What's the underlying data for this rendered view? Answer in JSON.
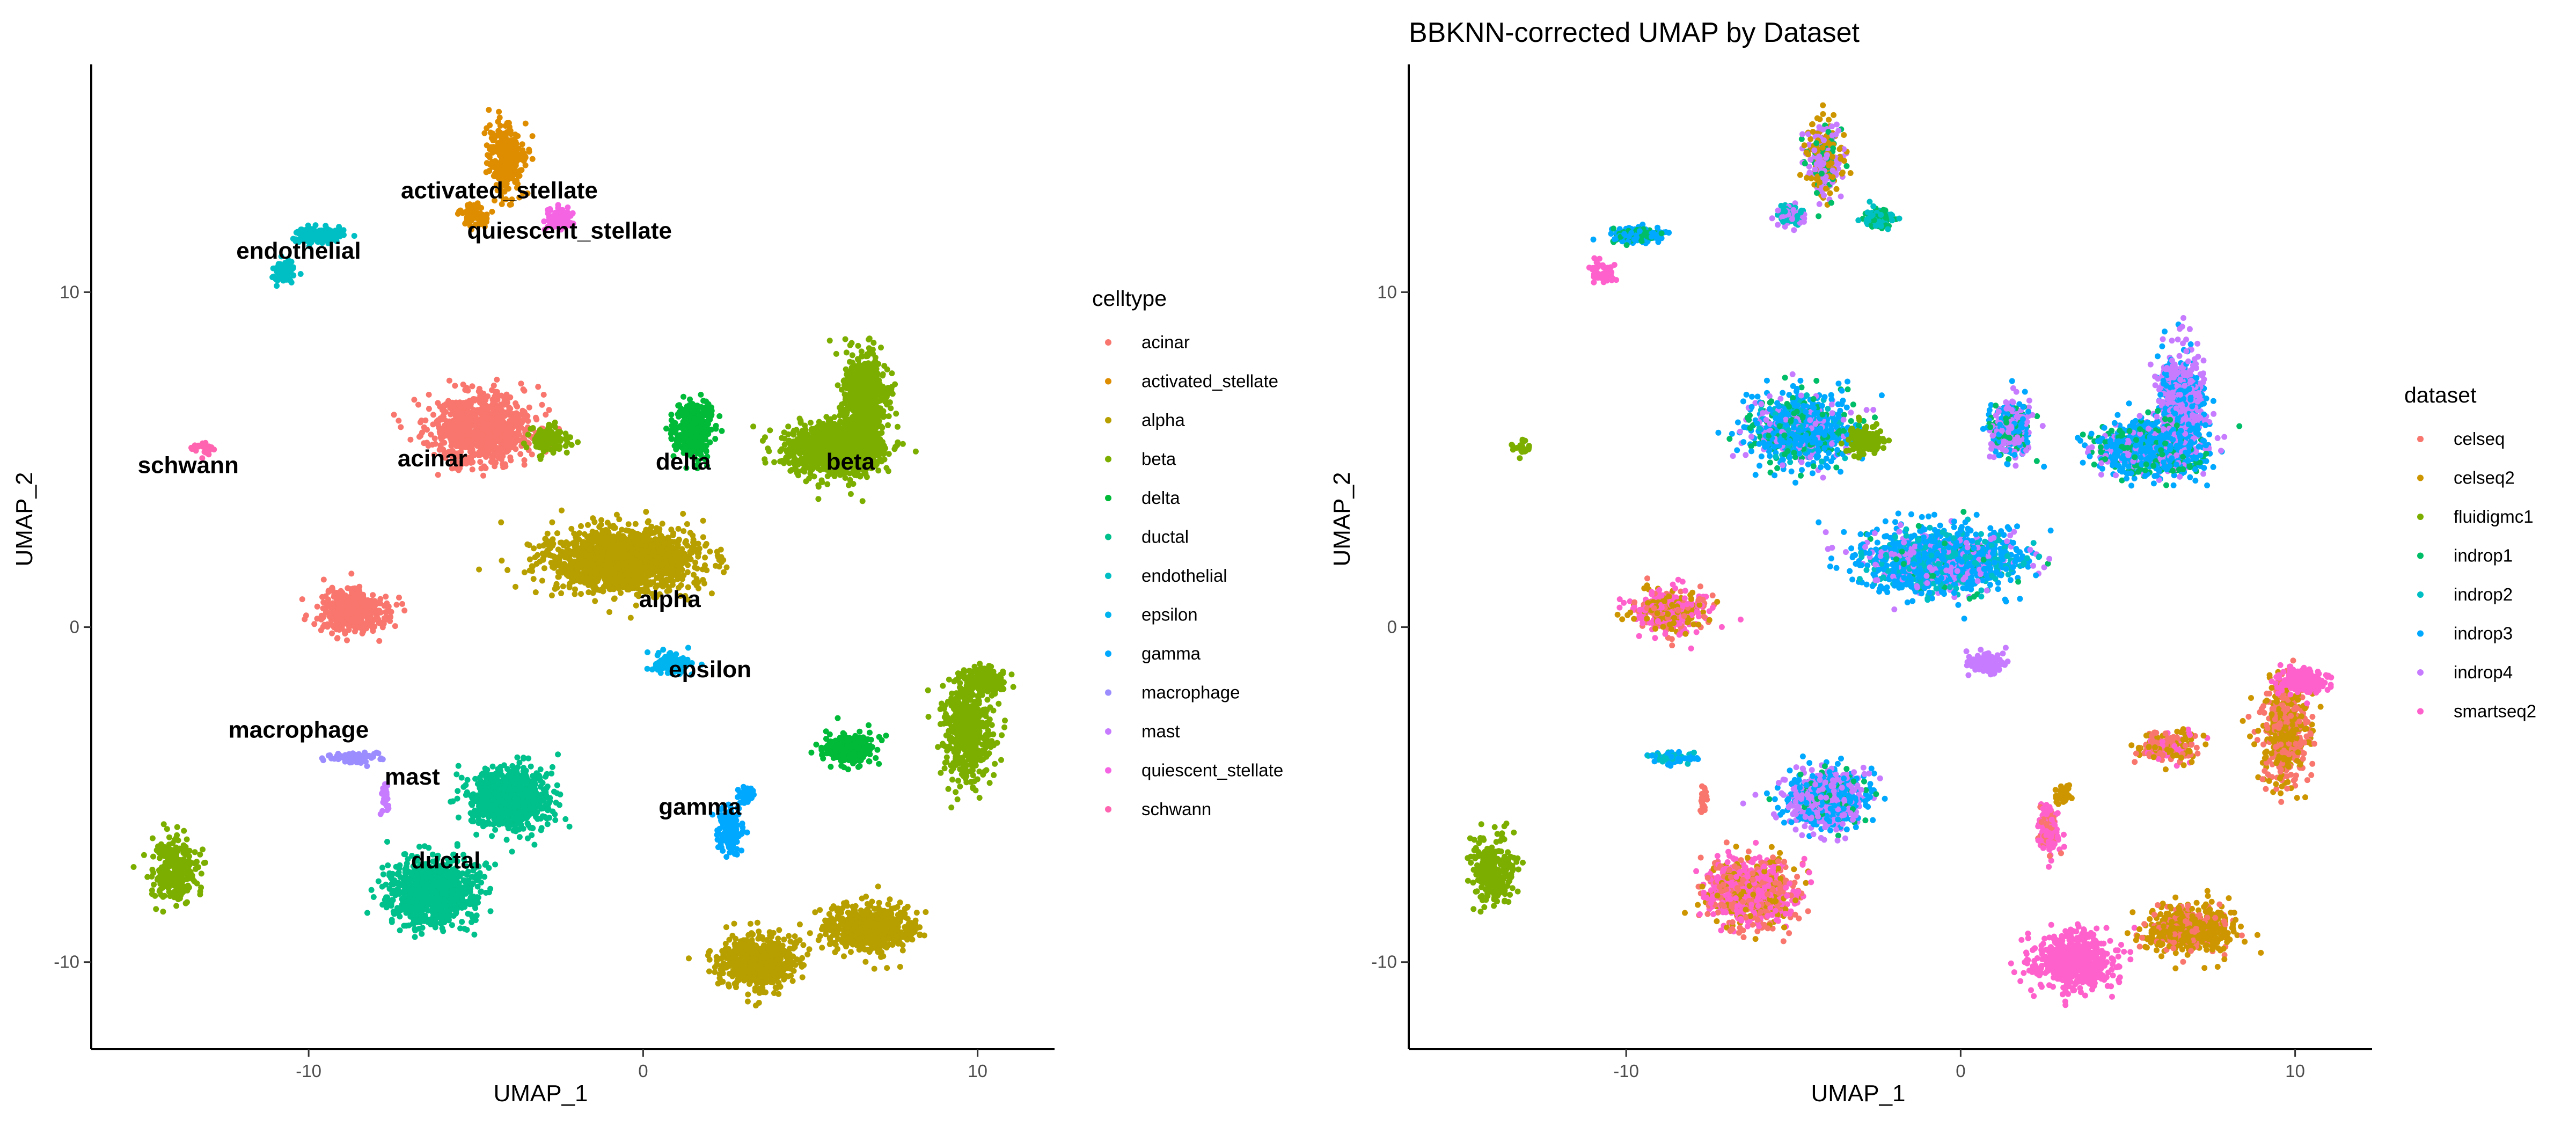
{
  "chart_data": [
    {
      "type": "scatter",
      "title": "",
      "xlabel": "UMAP_1",
      "ylabel": "UMAP_2",
      "xlim": [
        -16.5,
        12.3
      ],
      "ylim": [
        -12.6,
        16.8
      ],
      "xticks": [
        -10,
        0,
        10
      ],
      "yticks": [
        -10,
        0,
        10
      ],
      "tick_labels_x": [
        "-10",
        "0",
        "10"
      ],
      "tick_labels_y": [
        "-10",
        "0",
        "10"
      ],
      "grid": false,
      "legend_title": "celltype",
      "legend_position": "right",
      "series": [
        {
          "name": "acinar",
          "color": "#F8766D"
        },
        {
          "name": "activated_stellate",
          "color": "#DE8C00"
        },
        {
          "name": "alpha",
          "color": "#B79F00"
        },
        {
          "name": "beta",
          "color": "#7CAE00"
        },
        {
          "name": "delta",
          "color": "#00BA38"
        },
        {
          "name": "ductal",
          "color": "#00C08B"
        },
        {
          "name": "endothelial",
          "color": "#00BFC4"
        },
        {
          "name": "epsilon",
          "color": "#00B4F0"
        },
        {
          "name": "gamma",
          "color": "#00A9FF"
        },
        {
          "name": "macrophage",
          "color": "#9C8DFF"
        },
        {
          "name": "mast",
          "color": "#C77CFF"
        },
        {
          "name": "quiescent_stellate",
          "color": "#F564E3"
        },
        {
          "name": "schwann",
          "color": "#FF64B0"
        }
      ],
      "annotations": [
        {
          "text": "activated_stellate",
          "x": -4.3,
          "y": 12.8
        },
        {
          "text": "quiescent_stellate",
          "x": -2.2,
          "y": 11.6
        },
        {
          "text": "endothelial",
          "x": -10.3,
          "y": 11.0
        },
        {
          "text": "schwann",
          "x": -13.6,
          "y": 4.6
        },
        {
          "text": "acinar",
          "x": -6.3,
          "y": 4.8
        },
        {
          "text": "delta",
          "x": 1.2,
          "y": 4.7
        },
        {
          "text": "beta",
          "x": 6.2,
          "y": 4.7
        },
        {
          "text": "alpha",
          "x": 0.8,
          "y": 0.6
        },
        {
          "text": "epsilon",
          "x": 2.0,
          "y": -1.5
        },
        {
          "text": "macrophage",
          "x": -10.3,
          "y": -3.3
        },
        {
          "text": "mast",
          "x": -6.9,
          "y": -4.7
        },
        {
          "text": "gamma",
          "x": 1.7,
          "y": -5.6
        },
        {
          "text": "ductal",
          "x": -5.9,
          "y": -7.2
        }
      ]
    },
    {
      "type": "scatter",
      "title": "BBKNN-corrected UMAP by Dataset",
      "xlabel": "UMAP_1",
      "ylabel": "UMAP_2",
      "xlim": [
        -16.5,
        12.3
      ],
      "ylim": [
        -12.6,
        16.8
      ],
      "xticks": [
        -10,
        0,
        10
      ],
      "yticks": [
        -10,
        0,
        10
      ],
      "tick_labels_x": [
        "-10",
        "0",
        "10"
      ],
      "tick_labels_y": [
        "-10",
        "0",
        "10"
      ],
      "grid": false,
      "legend_title": "dataset",
      "legend_position": "right",
      "series": [
        {
          "name": "celseq",
          "color": "#F8766D"
        },
        {
          "name": "celseq2",
          "color": "#CD9600"
        },
        {
          "name": "fluidigmc1",
          "color": "#7CAE00"
        },
        {
          "name": "indrop1",
          "color": "#00BE67"
        },
        {
          "name": "indrop2",
          "color": "#00BFC4"
        },
        {
          "name": "indrop3",
          "color": "#00A9FF"
        },
        {
          "name": "indrop4",
          "color": "#C77CFF"
        },
        {
          "name": "smartseq2",
          "color": "#FF61CC"
        }
      ]
    }
  ]
}
